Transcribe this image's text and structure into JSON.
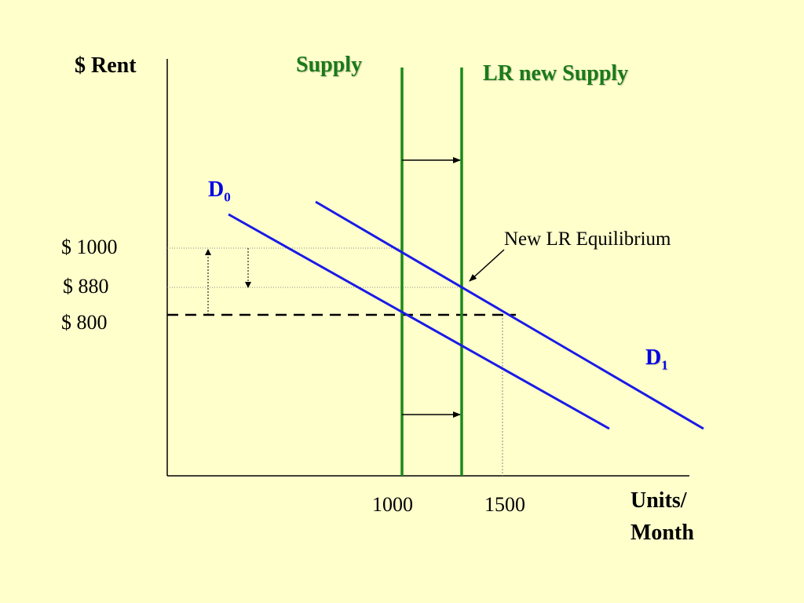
{
  "colors": {
    "background": "#ffffcc",
    "supply": "#1a8a1a",
    "demand": "#1a1ae6",
    "axis": "#000000",
    "guide": "#888888"
  },
  "axes": {
    "y_label": "$ Rent",
    "x_label_line1": "Units/",
    "x_label_line2": "Month"
  },
  "price_ticks": [
    "$ 1000",
    "$ 880",
    "$ 800"
  ],
  "quantity_ticks": [
    "1000",
    "1500"
  ],
  "supply": {
    "original_label": "Supply",
    "new_label": "LR new Supply"
  },
  "demand": {
    "d0_base": "D",
    "d0_sub": "0",
    "d1_base": "D",
    "d1_sub": "1"
  },
  "annotation": {
    "equilibrium_label": "New LR Equilibrium"
  }
}
